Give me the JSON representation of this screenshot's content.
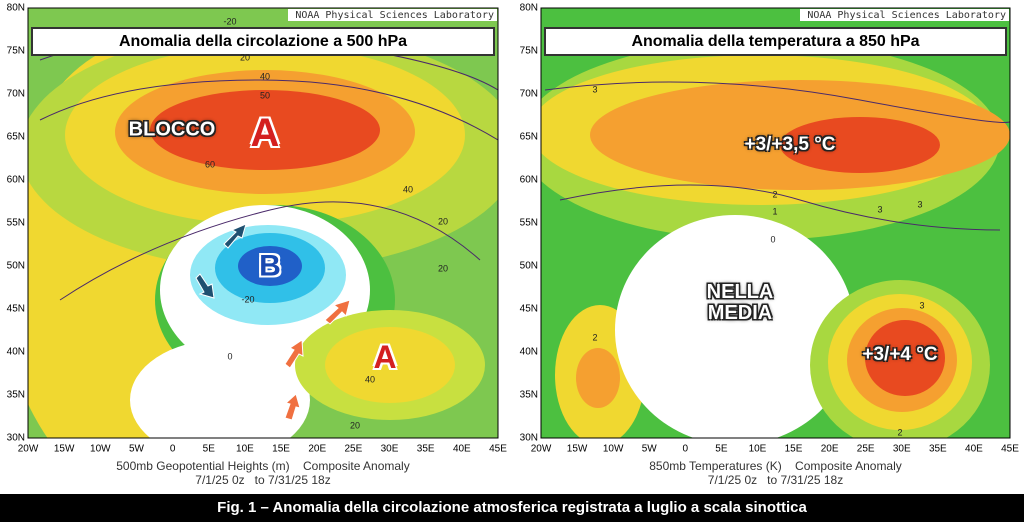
{
  "panels": [
    {
      "source": "NOAA Physical Sciences Laboratory",
      "title": "Anomalia della circolazione a 500 hPa",
      "lat_labels": [
        "80N",
        "75N",
        "70N",
        "65N",
        "60N",
        "55N",
        "50N",
        "45N",
        "40N",
        "35N",
        "30N"
      ],
      "lon_labels": [
        "20W",
        "15W",
        "10W",
        "5W",
        "0",
        "5E",
        "10E",
        "15E",
        "20E",
        "25E",
        "30E",
        "35E",
        "40E",
        "45E"
      ],
      "annotations": [
        "BLOCCO",
        "A",
        "B",
        "A"
      ],
      "contour_labels": [
        "-20",
        "20",
        "40",
        "50",
        "60",
        "40",
        "20",
        "20",
        "-20",
        "0",
        "40",
        "20"
      ],
      "caption": [
        "500mb Geopotential Heights (m)    Composite Anomaly",
        "7/1/25 0z   to 7/31/25 18z"
      ]
    },
    {
      "source": "NOAA Physical Sciences Laboratory",
      "title": "Anomalia della temperatura a 850 hPa",
      "lat_labels": [
        "80N",
        "75N",
        "70N",
        "65N",
        "60N",
        "55N",
        "50N",
        "45N",
        "40N",
        "35N",
        "30N"
      ],
      "lon_labels": [
        "20W",
        "15W",
        "10W",
        "5W",
        "0",
        "5E",
        "10E",
        "15E",
        "20E",
        "25E",
        "30E",
        "35E",
        "40E",
        "45E"
      ],
      "annotations": [
        "+3/+3,5 °C",
        "NELLA MEDIA",
        "+3/+4 °C"
      ],
      "contour_labels": [
        "3",
        "3",
        "2",
        "1",
        "0",
        "2",
        "3",
        "3",
        "2"
      ],
      "caption": [
        "850mb Temperatures (K)    Composite Anomaly",
        "7/1/25 0z   to 7/31/25 18z"
      ]
    }
  ],
  "figure_caption": "Fig. 1 – Anomalia della circolazione atmosferica registrata a luglio a scala sinottica"
}
